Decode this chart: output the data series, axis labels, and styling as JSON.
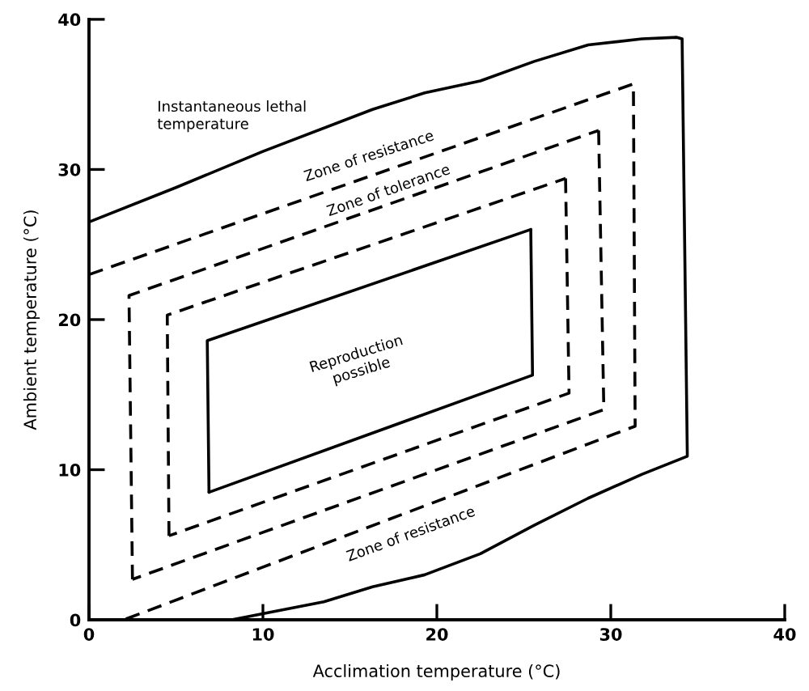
{
  "chart_data": {
    "type": "line",
    "xlabel": "Acclimation temperature (°C)",
    "ylabel": "Ambient temperature (°C)",
    "xlim": [
      0,
      40
    ],
    "ylim": [
      0,
      40
    ],
    "xticks": [
      0,
      10,
      20,
      30,
      40
    ],
    "yticks": [
      0,
      10,
      20,
      30,
      40
    ],
    "grid": false,
    "marker": "none",
    "series": [
      {
        "color": "#000000",
        "line_style": "solid",
        "x": [
          0,
          5,
          10,
          16.3,
          19.3,
          22.5,
          25.6,
          28.7,
          31.8,
          33.8,
          34.1,
          34.4,
          31.8,
          28.7,
          25.6,
          22.5,
          19.3,
          16.3,
          13.5,
          10.4,
          8.2
        ],
        "values": [
          26.5,
          28.8,
          31.2,
          34.0,
          35.1,
          35.9,
          37.2,
          38.3,
          38.7,
          38.8,
          38.7,
          10.9,
          9.7,
          8.1,
          6.3,
          4.4,
          3.0,
          2.2,
          1.2,
          0.5,
          0
        ]
      },
      {
        "color": "#000000",
        "line_style": "dashed",
        "x": [
          0,
          31.3,
          31.4,
          2.0
        ],
        "values": [
          23.0,
          35.7,
          12.9,
          0
        ]
      },
      {
        "color": "#000000",
        "line_style": "dashed",
        "x": [
          2.5,
          2.3,
          29.3
        ],
        "values": [
          2.7,
          21.6,
          32.6
        ]
      },
      {
        "color": "#000000",
        "line_style": "dashed",
        "x": [
          29.3,
          29.6,
          2.5
        ],
        "values": [
          32.6,
          14.0,
          2.7
        ]
      },
      {
        "color": "#000000",
        "line_style": "dashed",
        "x": [
          4.6,
          4.5,
          27.4
        ],
        "values": [
          5.6,
          20.3,
          29.4
        ]
      },
      {
        "color": "#000000",
        "line_style": "dashed",
        "x": [
          27.4,
          27.6,
          4.6
        ],
        "values": [
          29.4,
          15.1,
          5.6
        ]
      },
      {
        "color": "#000000",
        "line_style": "solid",
        "x": [
          6.9,
          6.8,
          25.4
        ],
        "values": [
          8.5,
          18.6,
          26.0
        ]
      },
      {
        "color": "#000000",
        "line_style": "solid",
        "x": [
          25.4,
          25.5,
          6.9
        ],
        "values": [
          26.0,
          16.3,
          8.5
        ]
      }
    ],
    "annotations": [
      "Instantaneous lethal\ntemperature",
      "Zone of resistance",
      "Zone of tolerance",
      "Reproduction\npossible",
      "Zone of resistance"
    ]
  }
}
